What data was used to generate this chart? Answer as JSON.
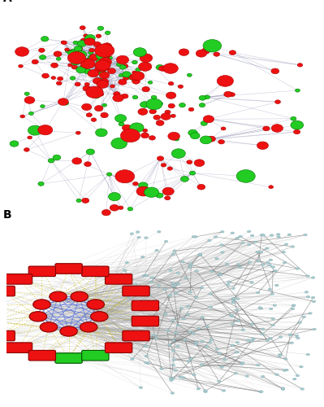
{
  "background_color": "#ffffff",
  "panel_A_label": "A",
  "panel_B_label": "B",
  "red_node_color": "#ee1111",
  "green_node_color": "#22cc22",
  "edge_color_A": "#9999bb",
  "blue_edge_color": "#3355dd",
  "yellow_edge_color": "#ddcc00",
  "miRNA_red_fill": "#ee1111",
  "miRNA_green_fill": "#22cc22",
  "target_dot_color": "#aacccc",
  "target_edge_color": "#888888",
  "hub_edge_color": "#555599"
}
